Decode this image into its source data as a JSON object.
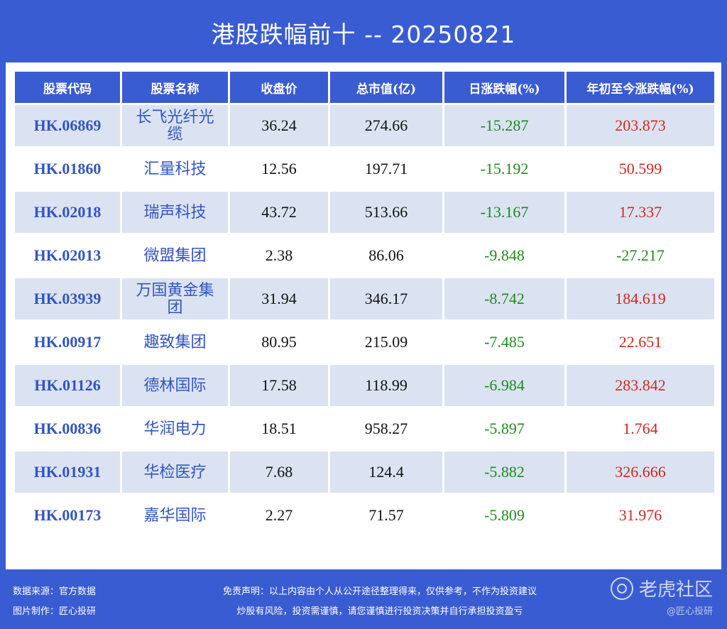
{
  "title": "港股跌幅前十 -- 20250821",
  "table": {
    "headers": [
      "股票代码",
      "股票名称",
      "收盘价",
      "总市值(亿)",
      "日涨跌幅(%)",
      "年初至今涨跌幅(%)"
    ],
    "rows": [
      {
        "code": "HK.06869",
        "name": "长飞光纤光缆",
        "close": "36.24",
        "mcap": "274.66",
        "day": "-15.287",
        "ytd": "203.873",
        "ytd_dir": "pos"
      },
      {
        "code": "HK.01860",
        "name": "汇量科技",
        "close": "12.56",
        "mcap": "197.71",
        "day": "-15.192",
        "ytd": "50.599",
        "ytd_dir": "pos"
      },
      {
        "code": "HK.02018",
        "name": "瑞声科技",
        "close": "43.72",
        "mcap": "513.66",
        "day": "-13.167",
        "ytd": "17.337",
        "ytd_dir": "pos"
      },
      {
        "code": "HK.02013",
        "name": "微盟集团",
        "close": "2.38",
        "mcap": "86.06",
        "day": "-9.848",
        "ytd": "-27.217",
        "ytd_dir": "neg"
      },
      {
        "code": "HK.03939",
        "name": "万国黄金集团",
        "close": "31.94",
        "mcap": "346.17",
        "day": "-8.742",
        "ytd": "184.619",
        "ytd_dir": "pos"
      },
      {
        "code": "HK.00917",
        "name": "趣致集团",
        "close": "80.95",
        "mcap": "215.09",
        "day": "-7.485",
        "ytd": "22.651",
        "ytd_dir": "pos"
      },
      {
        "code": "HK.01126",
        "name": "德林国际",
        "close": "17.58",
        "mcap": "118.99",
        "day": "-6.984",
        "ytd": "283.842",
        "ytd_dir": "pos"
      },
      {
        "code": "HK.00836",
        "name": "华润电力",
        "close": "18.51",
        "mcap": "958.27",
        "day": "-5.897",
        "ytd": "1.764",
        "ytd_dir": "pos"
      },
      {
        "code": "HK.01931",
        "name": "华检医疗",
        "close": "7.68",
        "mcap": "124.4",
        "day": "-5.882",
        "ytd": "326.666",
        "ytd_dir": "pos"
      },
      {
        "code": "HK.00173",
        "name": "嘉华国际",
        "close": "2.27",
        "mcap": "71.57",
        "day": "-5.809",
        "ytd": "31.976",
        "ytd_dir": "pos"
      }
    ]
  },
  "footer": {
    "source": "数据来源：官方数据",
    "maker": "图片制作：匠心投研",
    "disclaimer1": "免责声明：以上内容由个人从公开途径整理得来，仅供参考，不作为投资建议",
    "disclaimer2": "炒股有风险，投资需谨慎，请您谨慎进行投资决策并自行承担投资盈亏",
    "watermark": "老虎社区",
    "watermark_sub": "@匠心投研"
  },
  "colors": {
    "accent": "#3a5cd2",
    "row_alt": "#dbe3f2",
    "negative": "#1e8a1e",
    "positive": "#d0281f"
  }
}
